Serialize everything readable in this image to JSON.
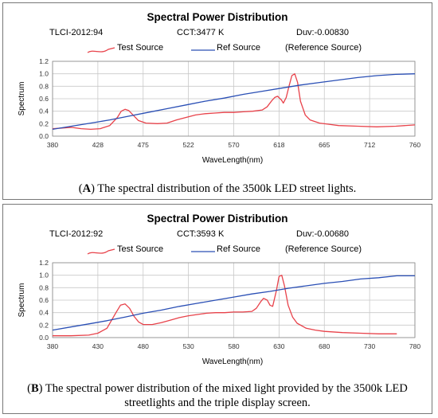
{
  "chart_data": [
    {
      "type": "line",
      "title": "Spectral Power Distribution",
      "tlci": "TLCI-2012:94",
      "cct": "CCT:3477 K",
      "duv": "Duv:-0.00830",
      "xlabel": "WaveLength(nm)",
      "ylabel": "Spectrum",
      "xlim": [
        380,
        760
      ],
      "ylim": [
        0,
        1.2
      ],
      "x_ticks": [
        "380",
        "428",
        "475",
        "522",
        "570",
        "618",
        "665",
        "712",
        "760"
      ],
      "x_tick_values": [
        380,
        427.5,
        475,
        522.5,
        570,
        617.5,
        665,
        712.5,
        760
      ],
      "y_ticks": [
        "0.0",
        "0.2",
        "0.4",
        "0.6",
        "0.8",
        "1.0",
        "1.2"
      ],
      "y_tick_values": [
        0,
        0.2,
        0.4,
        0.6,
        0.8,
        1.0,
        1.2
      ],
      "legend": [
        "Test Source",
        "Ref Source"
      ],
      "legend_suffix": "(Reference Source)",
      "grid": true,
      "series": [
        {
          "name": "Test Source",
          "color": "#e8424a",
          "x": [
            380,
            390,
            400,
            410,
            420,
            430,
            440,
            448,
            452,
            456,
            460,
            465,
            470,
            478,
            490,
            500,
            510,
            520,
            530,
            540,
            550,
            560,
            570,
            580,
            590,
            600,
            605,
            610,
            613,
            616,
            620,
            622,
            625,
            628,
            631,
            634,
            637,
            640,
            645,
            650,
            660,
            670,
            680,
            700,
            720,
            740,
            760
          ],
          "y": [
            0.12,
            0.13,
            0.14,
            0.12,
            0.11,
            0.12,
            0.17,
            0.3,
            0.4,
            0.43,
            0.41,
            0.33,
            0.25,
            0.21,
            0.2,
            0.21,
            0.26,
            0.3,
            0.34,
            0.36,
            0.37,
            0.38,
            0.38,
            0.39,
            0.4,
            0.42,
            0.47,
            0.57,
            0.62,
            0.64,
            0.58,
            0.53,
            0.62,
            0.8,
            0.97,
            1.0,
            0.86,
            0.56,
            0.34,
            0.26,
            0.21,
            0.19,
            0.17,
            0.16,
            0.15,
            0.16,
            0.18
          ]
        },
        {
          "name": "Ref Source",
          "color": "#2a4fb5",
          "x": [
            380,
            400,
            420,
            440,
            460,
            480,
            500,
            520,
            540,
            560,
            580,
            600,
            620,
            640,
            660,
            680,
            700,
            720,
            740,
            760
          ],
          "y": [
            0.11,
            0.16,
            0.21,
            0.26,
            0.32,
            0.38,
            0.44,
            0.5,
            0.56,
            0.61,
            0.67,
            0.72,
            0.77,
            0.82,
            0.86,
            0.9,
            0.94,
            0.97,
            0.99,
            1.0
          ]
        }
      ],
      "caption_label": "A",
      "caption_text": " The spectral distribution of the 3500k LED street lights."
    },
    {
      "type": "line",
      "title": "Spectral Power Distribution",
      "tlci": "TLCI-2012:92",
      "cct": "CCT:3593 K",
      "duv": "Duv:-0.00680",
      "xlabel": "WaveLength(nm)",
      "ylabel": "Spectrum",
      "xlim": [
        380,
        780
      ],
      "ylim": [
        0,
        1.2
      ],
      "x_ticks": [
        "380",
        "430",
        "480",
        "530",
        "580",
        "630",
        "680",
        "730",
        "780"
      ],
      "x_tick_values": [
        380,
        430,
        480,
        530,
        580,
        630,
        680,
        730,
        780
      ],
      "y_ticks": [
        "0.0",
        "0.2",
        "0.4",
        "0.6",
        "0.8",
        "1.0",
        "1.2"
      ],
      "y_tick_values": [
        0,
        0.2,
        0.4,
        0.6,
        0.8,
        1.0,
        1.2
      ],
      "legend": [
        "Test Source",
        "Ref Source"
      ],
      "legend_suffix": "(Reference Source)",
      "grid": true,
      "series": [
        {
          "name": "Test Source",
          "color": "#e8424a",
          "x": [
            380,
            400,
            420,
            430,
            440,
            450,
            455,
            460,
            465,
            470,
            475,
            480,
            490,
            500,
            510,
            520,
            530,
            540,
            550,
            560,
            570,
            580,
            590,
            600,
            605,
            610,
            613,
            617,
            620,
            623,
            627,
            630,
            633,
            636,
            640,
            645,
            650,
            660,
            670,
            680,
            700,
            720,
            740,
            760
          ],
          "y": [
            0.03,
            0.03,
            0.04,
            0.07,
            0.15,
            0.4,
            0.52,
            0.54,
            0.47,
            0.34,
            0.25,
            0.21,
            0.21,
            0.24,
            0.28,
            0.32,
            0.35,
            0.37,
            0.39,
            0.4,
            0.4,
            0.41,
            0.41,
            0.42,
            0.47,
            0.58,
            0.63,
            0.6,
            0.52,
            0.5,
            0.75,
            0.98,
            1.0,
            0.83,
            0.52,
            0.33,
            0.23,
            0.15,
            0.12,
            0.1,
            0.08,
            0.07,
            0.06,
            0.06
          ]
        },
        {
          "name": "Ref Source",
          "color": "#2a4fb5",
          "x": [
            380,
            400,
            420,
            440,
            460,
            480,
            500,
            520,
            540,
            560,
            580,
            600,
            620,
            640,
            660,
            680,
            700,
            720,
            740,
            760,
            780
          ],
          "y": [
            0.12,
            0.17,
            0.22,
            0.27,
            0.33,
            0.39,
            0.44,
            0.5,
            0.55,
            0.6,
            0.65,
            0.7,
            0.74,
            0.79,
            0.83,
            0.87,
            0.9,
            0.94,
            0.96,
            0.99,
            0.99
          ]
        }
      ],
      "caption_label": "B",
      "caption_text": " The spectral power distribution of the mixed light provided by the 3500k LED streetlights and the triple display screen."
    }
  ]
}
